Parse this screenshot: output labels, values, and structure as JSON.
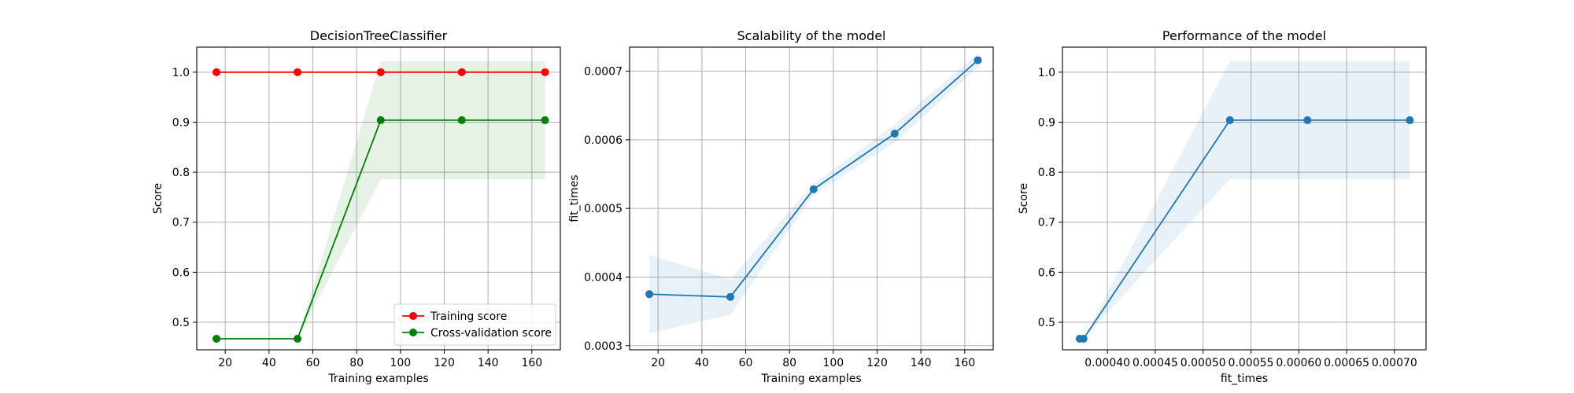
{
  "chart_data": [
    {
      "type": "line",
      "title": "DecisionTreeClassifier",
      "xlabel": "Training examples",
      "ylabel": "Score",
      "xlim": [
        7,
        173
      ],
      "ylim": [
        0.445,
        1.05
      ],
      "xticks": [
        20,
        40,
        60,
        80,
        100,
        120,
        140,
        160
      ],
      "xtick_labels": [
        "20",
        "40",
        "60",
        "80",
        "100",
        "120",
        "140",
        "160"
      ],
      "yticks": [
        0.5,
        0.6,
        0.7,
        0.8,
        0.9,
        1.0
      ],
      "ytick_labels": [
        "0.5",
        "0.6",
        "0.7",
        "0.8",
        "0.9",
        "1.0"
      ],
      "grid": true,
      "legend_position": "lower-right",
      "series": [
        {
          "name": "Training score",
          "color": "#ff0000",
          "x": [
            16,
            53,
            91,
            128,
            166
          ],
          "y": [
            1.0,
            1.0,
            1.0,
            1.0,
            1.0
          ],
          "band_low": [
            1.0,
            1.0,
            1.0,
            1.0,
            1.0
          ],
          "band_high": [
            1.0,
            1.0,
            1.0,
            1.0,
            1.0
          ],
          "band_color": "#ff0000"
        },
        {
          "name": "Cross-validation score",
          "color": "#008000",
          "x": [
            16,
            53,
            91,
            128,
            166
          ],
          "y": [
            0.467,
            0.467,
            0.904,
            0.904,
            0.904
          ],
          "band_low": [
            0.467,
            0.467,
            0.786,
            0.786,
            0.786
          ],
          "band_high": [
            0.467,
            0.467,
            1.022,
            1.022,
            1.022
          ],
          "band_color": "#008000"
        }
      ]
    },
    {
      "type": "line",
      "title": "Scalability of the model",
      "xlabel": "Training examples",
      "ylabel": "fit_times",
      "xlim": [
        7,
        173
      ],
      "ylim": [
        0.000294,
        0.000735
      ],
      "xticks": [
        20,
        40,
        60,
        80,
        100,
        120,
        140,
        160
      ],
      "xtick_labels": [
        "20",
        "40",
        "60",
        "80",
        "100",
        "120",
        "140",
        "160"
      ],
      "yticks": [
        0.0003,
        0.0004,
        0.0005,
        0.0006,
        0.0007
      ],
      "ytick_labels": [
        "0.0003",
        "0.0004",
        "0.0005",
        "0.0006",
        "0.0007"
      ],
      "grid": true,
      "series": [
        {
          "color": "#1f77b4",
          "x": [
            16,
            53,
            91,
            128,
            166
          ],
          "y": [
            0.000375,
            0.000371,
            0.000528,
            0.000609,
            0.000716
          ],
          "band_low": [
            0.000318,
            0.000345,
            0.00052,
            0.000596,
            0.000706
          ],
          "band_high": [
            0.000432,
            0.000397,
            0.000536,
            0.000622,
            0.000726
          ],
          "band_color": "#1f77b4"
        }
      ]
    },
    {
      "type": "line",
      "title": "Performance of the model",
      "xlabel": "fit_times",
      "ylabel": "Score",
      "xlim": [
        0.000353,
        0.000733
      ],
      "ylim": [
        0.445,
        1.05
      ],
      "xticks": [
        0.0004,
        0.00045,
        0.0005,
        0.00055,
        0.0006,
        0.00065,
        0.0007
      ],
      "xtick_labels": [
        "0.00040",
        "0.00045",
        "0.00050",
        "0.00055",
        "0.00060",
        "0.00065",
        "0.00070"
      ],
      "yticks": [
        0.5,
        0.6,
        0.7,
        0.8,
        0.9,
        1.0
      ],
      "ytick_labels": [
        "0.5",
        "0.6",
        "0.7",
        "0.8",
        "0.9",
        "1.0"
      ],
      "grid": true,
      "series": [
        {
          "color": "#1f77b4",
          "x": [
            0.000371,
            0.000375,
            0.000528,
            0.000609,
            0.000716
          ],
          "y": [
            0.467,
            0.467,
            0.904,
            0.904,
            0.904
          ],
          "band_low": [
            0.467,
            0.467,
            0.786,
            0.786,
            0.786
          ],
          "band_high": [
            0.467,
            0.467,
            1.022,
            1.022,
            1.022
          ],
          "band_color": "#1f77b4"
        }
      ]
    }
  ]
}
